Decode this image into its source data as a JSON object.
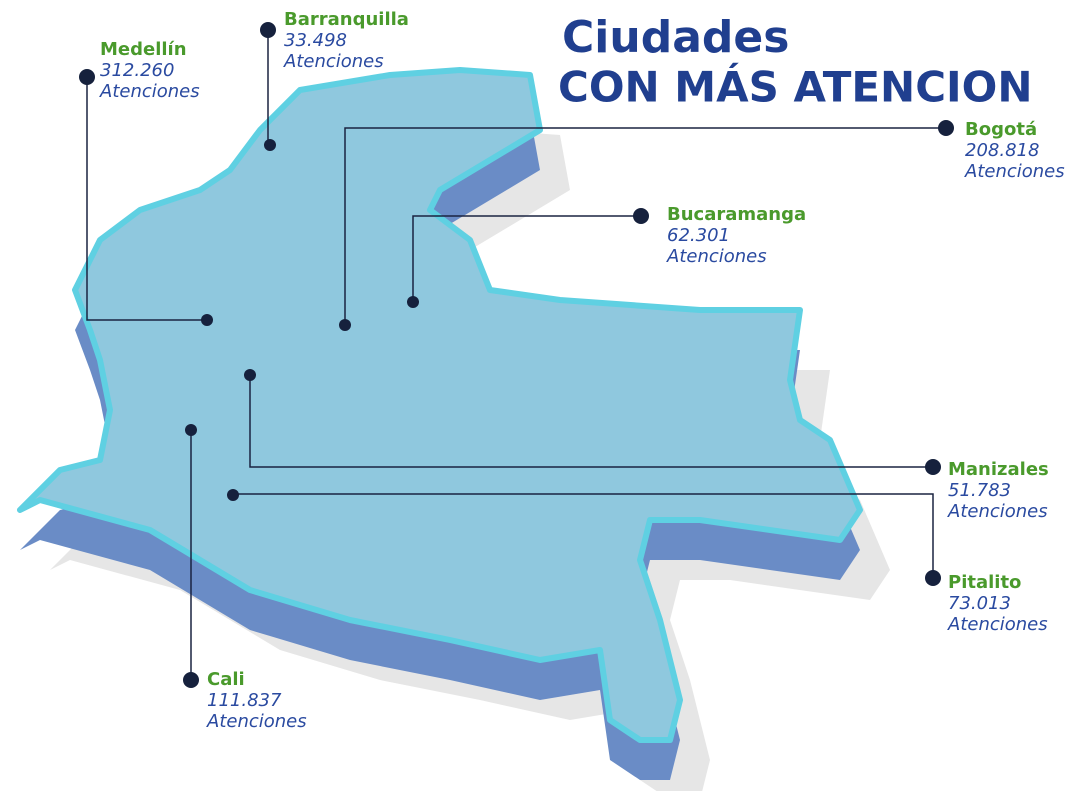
{
  "title": {
    "line1": "Ciudades",
    "line2": "CON MÁS ATENCION"
  },
  "cities": [
    {
      "name": "Barranquilla",
      "count": "33.498",
      "unit": "Atenciones"
    },
    {
      "name": "Medellín",
      "count": "312.260",
      "unit": "Atenciones"
    },
    {
      "name": "Bogotá",
      "count": "208.818",
      "unit": "Atenciones"
    },
    {
      "name": "Bucaramanga",
      "count": "62.301",
      "unit": "Atenciones"
    },
    {
      "name": "Manizales",
      "count": "51.783",
      "unit": "Atenciones"
    },
    {
      "name": "Pitalito",
      "count": "73.013",
      "unit": "Atenciones"
    },
    {
      "name": "Cali",
      "count": "111.837",
      "unit": "Atenciones"
    }
  ]
}
